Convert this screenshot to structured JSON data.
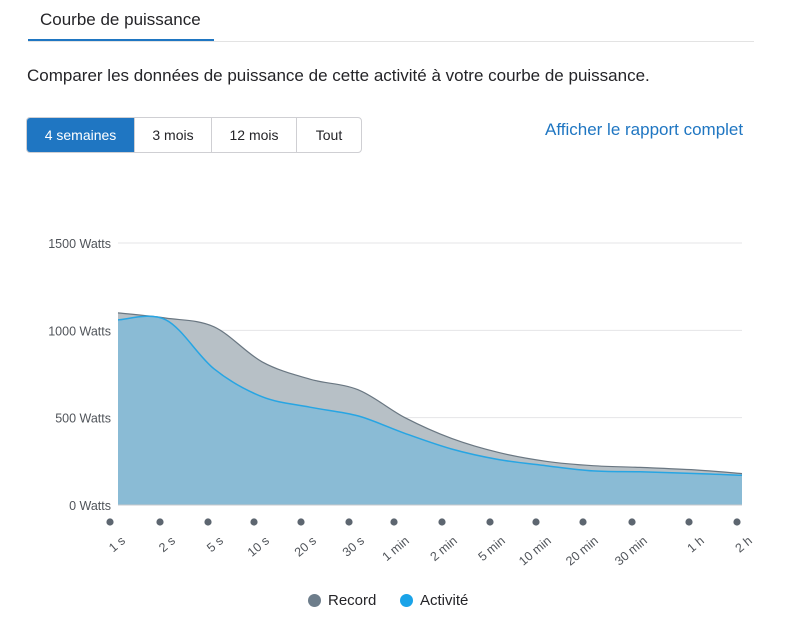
{
  "tab": {
    "label": "Courbe de puissance"
  },
  "description": "Comparer les données de puissance de cette activité à votre courbe de puissance.",
  "range_options": [
    {
      "label": "4 semaines",
      "active": true
    },
    {
      "label": "3 mois",
      "active": false
    },
    {
      "label": "12 mois",
      "active": false
    },
    {
      "label": "Tout",
      "active": false
    }
  ],
  "report_link": "Afficher le rapport complet",
  "colors": {
    "accent": "#1f76c2",
    "record_fill": "#b7c0c6",
    "record_line": "#6a7782",
    "activity_fill": "#8abbd5",
    "activity_line": "#27a5e3",
    "record_legend": "#6d7d8b",
    "activity_legend": "#1aa3e8"
  },
  "chart_data": {
    "type": "area",
    "x": [
      "1 s",
      "2 s",
      "5 s",
      "10 s",
      "20 s",
      "30 s",
      "1 min",
      "2 min",
      "5 min",
      "10 min",
      "20 min",
      "30 min",
      "1 h",
      "2 h"
    ],
    "x_tick_labels": [
      "1 s",
      "2 s",
      "5 s",
      "10 s",
      "20 s",
      "30 s",
      "1 min",
      "2 min",
      "5 min",
      "10 min",
      "20 min",
      "30 min",
      "1 h",
      "2 h"
    ],
    "y_ticks": [
      "0 Watts",
      "500 Watts",
      "1000 Watts",
      "1500 Watts"
    ],
    "ylim": [
      0,
      1500
    ],
    "grid": true,
    "legend_position": "bottom",
    "series": [
      {
        "name": "Record",
        "values": [
          1100,
          1070,
          1020,
          820,
          720,
          660,
          500,
          380,
          300,
          250,
          225,
          215,
          200,
          180
        ]
      },
      {
        "name": "Activité",
        "values": [
          1060,
          1060,
          780,
          620,
          560,
          510,
          410,
          320,
          260,
          225,
          195,
          190,
          180,
          170
        ]
      }
    ]
  }
}
